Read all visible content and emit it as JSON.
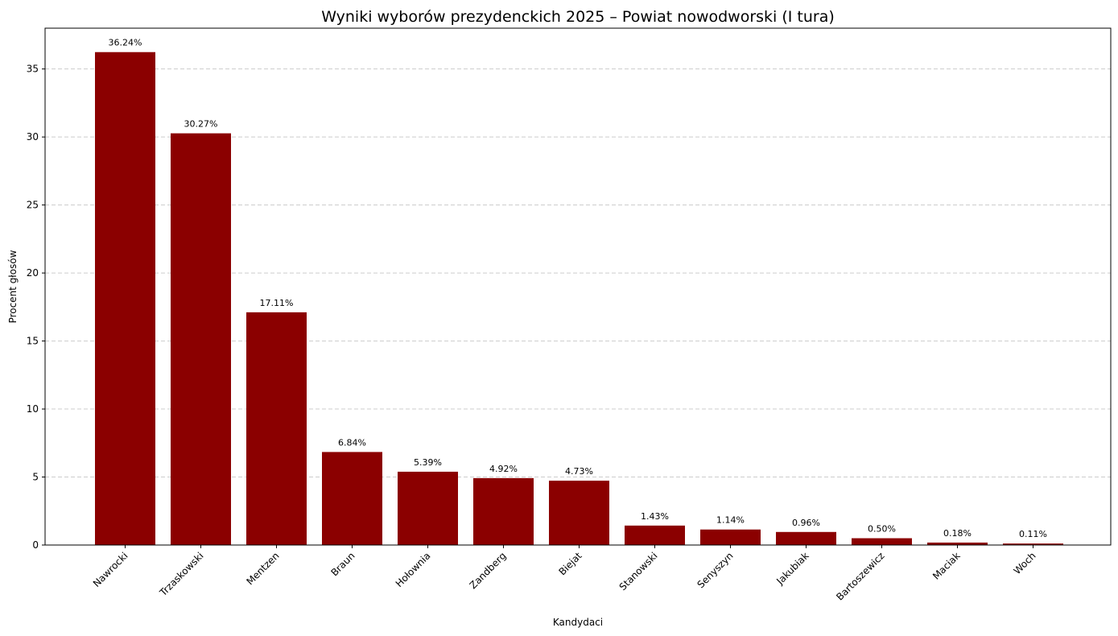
{
  "chart_data": {
    "type": "bar",
    "title": "Wyniki wyborów prezydenckich 2025 – Powiat nowodworski (I tura)",
    "xlabel": "Kandydaci",
    "ylabel": "Procent głosów",
    "categories": [
      "Nawrocki",
      "Trzaskowski",
      "Mentzen",
      "Braun",
      "Hołownia",
      "Zandberg",
      "Biejat",
      "Stanowski",
      "Senyszyn",
      "Jakubiak",
      "Bartoszewicz",
      "Maciak",
      "Woch"
    ],
    "values": [
      36.24,
      30.27,
      17.11,
      6.84,
      5.39,
      4.92,
      4.73,
      1.43,
      1.14,
      0.96,
      0.5,
      0.18,
      0.11
    ],
    "value_labels": [
      "36.24%",
      "30.27%",
      "17.11%",
      "6.84%",
      "5.39%",
      "4.92%",
      "4.73%",
      "1.43%",
      "1.14%",
      "0.96%",
      "0.50%",
      "0.18%",
      "0.11%"
    ],
    "ylim": [
      0,
      38
    ],
    "yticks": [
      0,
      5,
      10,
      15,
      20,
      25,
      30,
      35
    ],
    "grid": "horizontal dashed",
    "bar_color": "#8b0000"
  }
}
